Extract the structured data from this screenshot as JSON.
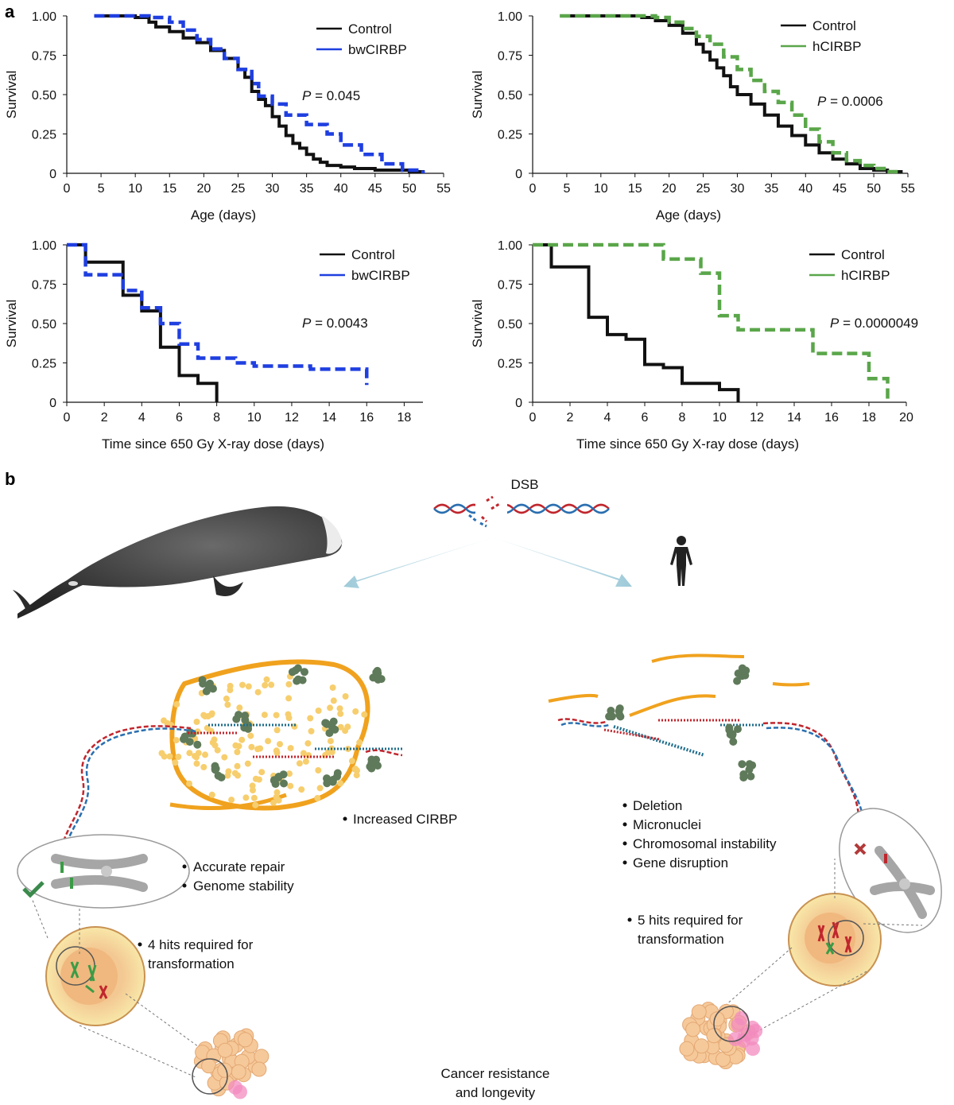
{
  "panel_labels": {
    "a": "a",
    "b": "b"
  },
  "colors": {
    "control": "#111111",
    "bwCIRBP": "#1f3fe0",
    "hCIRBP": "#5aa64a",
    "dna_blue": "#2a6fb0",
    "dna_red": "#c0262d",
    "rna": "#f0a21e"
  },
  "chart_data": [
    {
      "type": "line",
      "id": "tl",
      "xlabel": "Age (days)",
      "ylabel": "Survival",
      "xlim": [
        0,
        55
      ],
      "ylim": [
        0,
        1
      ],
      "xticks": [
        "0",
        "5",
        "10",
        "15",
        "20",
        "25",
        "30",
        "35",
        "40",
        "45",
        "50",
        "55"
      ],
      "yticks": [
        "0",
        "0.25",
        "0.50",
        "0.75",
        "1.00"
      ],
      "p_prefix": "P",
      "p_value": " = 0.045",
      "series": [
        {
          "name": "Control",
          "color": "#111111",
          "dash": false,
          "x": [
            4,
            10,
            12,
            13,
            15,
            17,
            19,
            21,
            23,
            25,
            26,
            27,
            28,
            29,
            30,
            31,
            32,
            33,
            34,
            35,
            36,
            37,
            38,
            40,
            42,
            45,
            48,
            50,
            52
          ],
          "y": [
            1.0,
            0.99,
            0.96,
            0.93,
            0.9,
            0.86,
            0.83,
            0.78,
            0.73,
            0.66,
            0.61,
            0.52,
            0.47,
            0.43,
            0.36,
            0.3,
            0.24,
            0.19,
            0.16,
            0.12,
            0.09,
            0.07,
            0.05,
            0.04,
            0.03,
            0.02,
            0.02,
            0.01,
            0.0
          ]
        },
        {
          "name": "bwCIRBP",
          "color": "#1f3fe0",
          "dash": true,
          "x": [
            4,
            12,
            15,
            17,
            19,
            21,
            23,
            25,
            27,
            28,
            30,
            32,
            35,
            38,
            40,
            43,
            46,
            49,
            52
          ],
          "y": [
            1.0,
            0.99,
            0.96,
            0.91,
            0.85,
            0.79,
            0.73,
            0.66,
            0.57,
            0.49,
            0.44,
            0.37,
            0.31,
            0.25,
            0.18,
            0.12,
            0.06,
            0.02,
            0.0
          ]
        }
      ]
    },
    {
      "type": "line",
      "id": "tr",
      "xlabel": "Age (days)",
      "ylabel": "Survival",
      "xlim": [
        0,
        55
      ],
      "ylim": [
        0,
        1
      ],
      "xticks": [
        "0",
        "5",
        "10",
        "15",
        "20",
        "25",
        "30",
        "35",
        "40",
        "45",
        "50",
        "55"
      ],
      "yticks": [
        "0",
        "0.25",
        "0.50",
        "0.75",
        "1.00"
      ],
      "p_prefix": "P",
      "p_value": " = 0.0006",
      "series": [
        {
          "name": "Control",
          "color": "#111111",
          "dash": false,
          "x": [
            4,
            16,
            18,
            20,
            22,
            24,
            25,
            26,
            27,
            28,
            29,
            30,
            32,
            34,
            36,
            38,
            40,
            42,
            44,
            46,
            48,
            50,
            52,
            54
          ],
          "y": [
            1.0,
            0.99,
            0.97,
            0.94,
            0.89,
            0.82,
            0.77,
            0.72,
            0.67,
            0.62,
            0.55,
            0.5,
            0.44,
            0.37,
            0.3,
            0.24,
            0.18,
            0.13,
            0.09,
            0.06,
            0.03,
            0.02,
            0.01,
            0.0
          ]
        },
        {
          "name": "hCIRBP",
          "color": "#5aa64a",
          "dash": true,
          "x": [
            4,
            18,
            20,
            22,
            24,
            26,
            28,
            30,
            32,
            34,
            36,
            38,
            40,
            42,
            44,
            46,
            48,
            50,
            52,
            54
          ],
          "y": [
            1.0,
            0.99,
            0.96,
            0.92,
            0.87,
            0.82,
            0.74,
            0.66,
            0.59,
            0.52,
            0.45,
            0.37,
            0.28,
            0.2,
            0.13,
            0.08,
            0.05,
            0.03,
            0.01,
            0.0
          ]
        }
      ]
    },
    {
      "type": "line",
      "id": "bl",
      "xlabel": "Time since 650 Gy X-ray dose (days)",
      "ylabel": "Survival",
      "xlim": [
        0,
        19
      ],
      "ylim": [
        0,
        1
      ],
      "xticks": [
        "0",
        "2",
        "4",
        "6",
        "8",
        "10",
        "12",
        "14",
        "16",
        "18"
      ],
      "yticks": [
        "0",
        "0.25",
        "0.50",
        "0.75",
        "1.00"
      ],
      "p_prefix": "P",
      "p_value": " = 0.0043",
      "series": [
        {
          "name": "Control",
          "color": "#111111",
          "dash": false,
          "x": [
            0,
            1,
            3,
            4,
            5,
            6,
            7,
            8
          ],
          "y": [
            1.0,
            0.89,
            0.68,
            0.58,
            0.35,
            0.17,
            0.12,
            0.0
          ]
        },
        {
          "name": "bwCIRBP",
          "color": "#1f3fe0",
          "dash": true,
          "x": [
            0,
            1,
            3,
            4,
            5,
            6,
            7,
            9,
            10,
            13,
            16
          ],
          "y": [
            1.0,
            0.81,
            0.71,
            0.6,
            0.5,
            0.37,
            0.28,
            0.25,
            0.23,
            0.21,
            0.11
          ]
        }
      ]
    },
    {
      "type": "line",
      "id": "br",
      "xlabel": "Time since 650 Gy X-ray dose (days)",
      "ylabel": "Survival",
      "xlim": [
        0,
        20
      ],
      "ylim": [
        0,
        1
      ],
      "xticks": [
        "0",
        "2",
        "4",
        "6",
        "8",
        "10",
        "12",
        "14",
        "16",
        "18",
        "20"
      ],
      "yticks": [
        "0",
        "0.25",
        "0.50",
        "0.75",
        "1.00"
      ],
      "p_prefix": "P",
      "p_value": " = 0.0000049",
      "series": [
        {
          "name": "Control",
          "color": "#111111",
          "dash": false,
          "x": [
            0,
            1,
            3,
            4,
            5,
            6,
            7,
            8,
            10,
            11
          ],
          "y": [
            1.0,
            0.86,
            0.54,
            0.43,
            0.4,
            0.24,
            0.22,
            0.12,
            0.08,
            0.0
          ]
        },
        {
          "name": "hCIRBP",
          "color": "#5aa64a",
          "dash": true,
          "x": [
            0,
            7,
            9,
            10,
            11,
            15,
            18,
            19
          ],
          "y": [
            1.0,
            0.91,
            0.82,
            0.55,
            0.46,
            0.31,
            0.15,
            0.0
          ]
        }
      ]
    }
  ],
  "schematic": {
    "dsb_label": "DSB",
    "left_bullets": [
      "Increased CIRBP",
      "Accurate repair",
      "Genome stability",
      "4 hits required for",
      "transformation"
    ],
    "right_bullets": [
      "Deletion",
      "Micronuclei",
      "Chromosomal instability",
      "Gene disruption",
      "5 hits required for",
      "transformation"
    ],
    "outcome": [
      "Cancer resistance",
      "and longevity"
    ]
  }
}
